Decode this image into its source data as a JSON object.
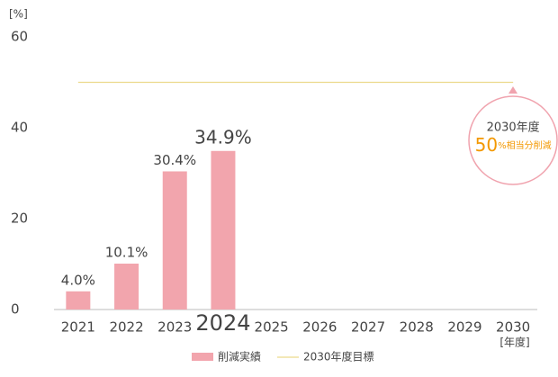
{
  "chart_data": {
    "type": "bar",
    "y_unit_label": "[%]",
    "x_label": "[年度]",
    "categories": [
      "2021",
      "2022",
      "2023",
      "2024",
      "2025",
      "2026",
      "2027",
      "2028",
      "2029",
      "2030"
    ],
    "highlight": "2024",
    "series": [
      {
        "name": "削減実績",
        "color": "#f2a5ad",
        "values": [
          4.0,
          10.1,
          30.4,
          34.9,
          null,
          null,
          null,
          null,
          null,
          null
        ],
        "value_labels": [
          "4.0%",
          "10.1%",
          "30.4%",
          "34.9%",
          null,
          null,
          null,
          null,
          null,
          null
        ]
      }
    ],
    "target": {
      "name": "2030年度目標",
      "value": 50,
      "color": "#ecd98c",
      "annotation_title": "2030年度",
      "annotation_value_label": "50",
      "annotation_text": "%相当分削減"
    },
    "ylim": [
      0,
      60
    ],
    "yticks": [
      0,
      20,
      40,
      60
    ],
    "grid": false
  }
}
